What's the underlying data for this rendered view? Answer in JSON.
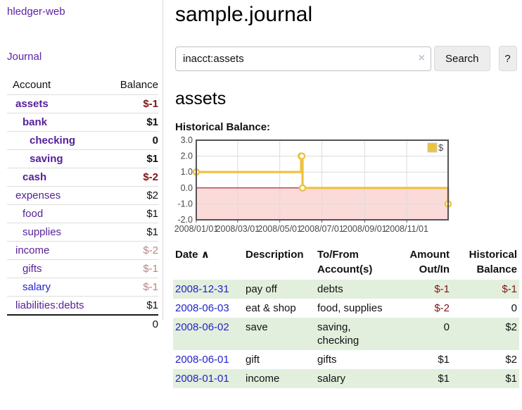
{
  "app": {
    "title": "hledger-web"
  },
  "sidebar": {
    "journal_link": "Journal",
    "accounts": {
      "account_header": "Account",
      "balance_header": "Balance",
      "rows": [
        {
          "name": "assets",
          "balance": "$-1",
          "indent": 1,
          "bold": true,
          "negative": "strong",
          "color": "purple"
        },
        {
          "name": "bank",
          "balance": "$1",
          "indent": 2,
          "bold": true,
          "negative": null,
          "color": "purple"
        },
        {
          "name": "checking",
          "balance": "0",
          "indent": 3,
          "bold": true,
          "negative": null,
          "color": "purple"
        },
        {
          "name": "saving",
          "balance": "$1",
          "indent": 3,
          "bold": true,
          "negative": null,
          "color": "purple"
        },
        {
          "name": "cash",
          "balance": "$-2",
          "indent": 2,
          "bold": true,
          "negative": "strong",
          "color": "purple"
        },
        {
          "name": "expenses",
          "balance": "$2",
          "indent": 1,
          "bold": false,
          "negative": null,
          "color": "purple"
        },
        {
          "name": "food",
          "balance": "$1",
          "indent": 2,
          "bold": false,
          "negative": null,
          "color": "purple"
        },
        {
          "name": "supplies",
          "balance": "$1",
          "indent": 2,
          "bold": false,
          "negative": null,
          "color": "purple"
        },
        {
          "name": "income",
          "balance": "$-2",
          "indent": 1,
          "bold": false,
          "negative": "soft",
          "color": "purple"
        },
        {
          "name": "gifts",
          "balance": "$-1",
          "indent": 2,
          "bold": false,
          "negative": "soft",
          "color": "purple"
        },
        {
          "name": "salary",
          "balance": "$-1",
          "indent": 2,
          "bold": false,
          "negative": "soft",
          "color": "blue"
        },
        {
          "name": "liabilities:debts",
          "balance": "$1",
          "indent": 1,
          "bold": false,
          "negative": null,
          "color": "purple"
        }
      ],
      "total": "0"
    }
  },
  "main": {
    "title": "sample.journal",
    "search": {
      "value": "inacct:assets",
      "clear_icon": "×",
      "button_label": "Search",
      "help_label": "?"
    },
    "account_heading": "assets",
    "chart_label": "Historical Balance:"
  },
  "chart_data": {
    "type": "line",
    "title": "Historical Balance",
    "step": "after",
    "x": [
      "2008-01-01",
      "2008-06-01",
      "2008-06-02",
      "2008-06-03",
      "2008-12-31"
    ],
    "values": [
      1,
      2,
      2,
      0,
      -1
    ],
    "x_range": [
      "2008-01-01",
      "2008-12-31"
    ],
    "ylim": [
      -2,
      3
    ],
    "y_ticks": [
      "3.0",
      "2.0",
      "1.0",
      "0.0",
      "-1.0",
      "-2.0"
    ],
    "x_ticks": [
      {
        "date": "2008-01-01",
        "label": "2008/01/01"
      },
      {
        "date": "2008-03-01",
        "label": "2008/03/01"
      },
      {
        "date": "2008-05-01",
        "label": "2008/05/01"
      },
      {
        "date": "2008-07-01",
        "label": "2008/07/01"
      },
      {
        "date": "2008-09-01",
        "label": "2008/09/01"
      },
      {
        "date": "2008-11-01",
        "label": "2008/11/01"
      }
    ],
    "legend": [
      {
        "label": "$",
        "color": "#edc240"
      }
    ],
    "legend_position": "top-right",
    "grid": true,
    "colors": {
      "line": "#edc240",
      "marker_fill": "#ffffff",
      "negative_region": "#fbdada",
      "zero_line": "#8b0000",
      "grid": "#dcdcdc",
      "border": "#545454",
      "tick_text": "#494949"
    }
  },
  "register": {
    "headers": {
      "date": "Date",
      "description": "Description",
      "accounts": "To/From Account(s)",
      "amount": "Amount Out/In",
      "balance": "Historical Balance"
    },
    "sort_icon": "∧",
    "rows": [
      {
        "date": "2008-12-31",
        "description": "pay off",
        "accounts": "debts",
        "amount": "$-1",
        "balance": "$-1"
      },
      {
        "date": "2008-06-03",
        "description": "eat & shop",
        "accounts": "food, supplies",
        "amount": "$-2",
        "balance": "0"
      },
      {
        "date": "2008-06-02",
        "description": "save",
        "accounts": "saving, checking",
        "amount": "0",
        "balance": "$2"
      },
      {
        "date": "2008-06-01",
        "description": "gift",
        "accounts": "gifts",
        "amount": "$1",
        "balance": "$2"
      },
      {
        "date": "2008-01-01",
        "description": "income",
        "accounts": "salary",
        "amount": "$1",
        "balance": "$1"
      }
    ]
  }
}
